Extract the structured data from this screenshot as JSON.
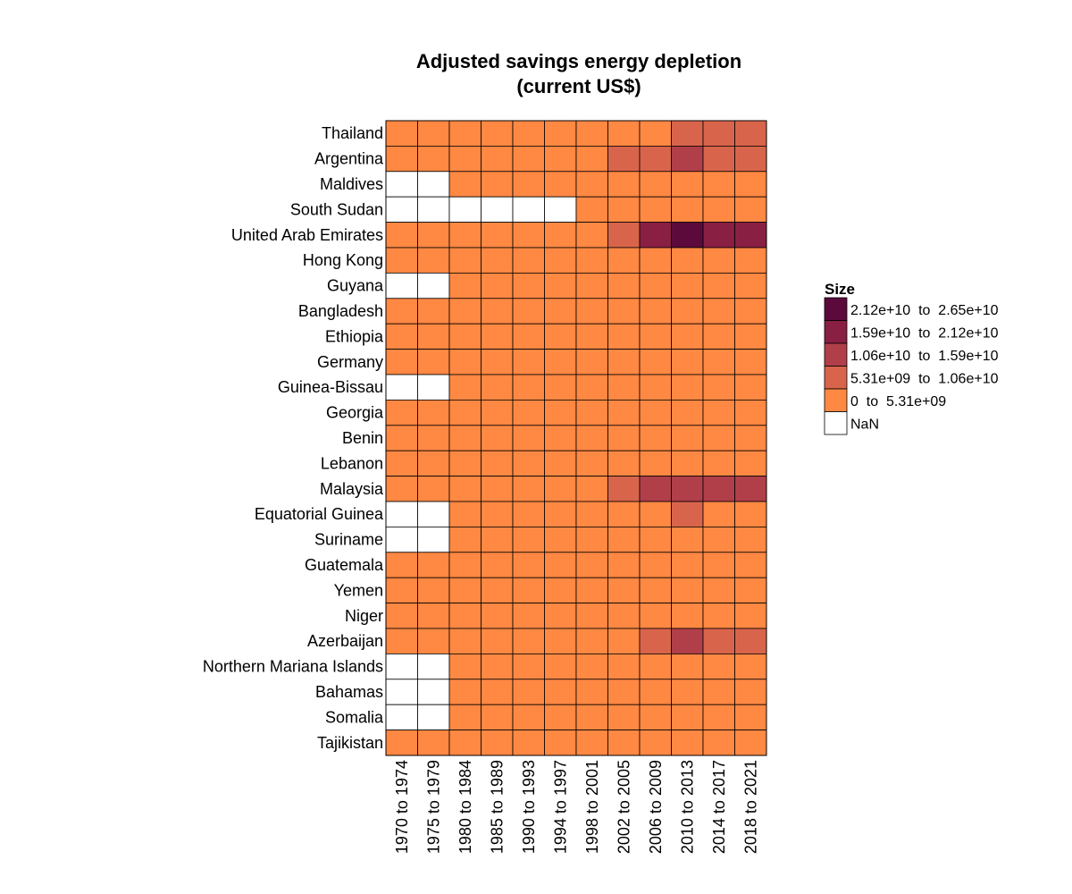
{
  "chart_data": {
    "type": "heatmap",
    "title_lines": [
      "Adjusted savings energy depletion",
      "(current US$)"
    ],
    "x_categories": [
      "1970 to 1974",
      "1975 to 1979",
      "1980 to 1984",
      "1985 to 1989",
      "1990 to 1993",
      "1994 to 1997",
      "1998 to 2001",
      "2002 to 2005",
      "2006 to 2009",
      "2010 to 2013",
      "2014 to 2017",
      "2018 to 2021"
    ],
    "y_categories": [
      "Thailand",
      "Argentina",
      "Maldives",
      "South Sudan",
      "United Arab Emirates",
      "Hong Kong",
      "Guyana",
      "Bangladesh",
      "Ethiopia",
      "Germany",
      "Guinea-Bissau",
      "Georgia",
      "Benin",
      "Lebanon",
      "Malaysia",
      "Equatorial Guinea",
      "Suriname",
      "Guatemala",
      "Yemen",
      "Niger",
      "Azerbaijan",
      "Northern Mariana Islands",
      "Bahamas",
      "Somalia",
      "Tajikistan"
    ],
    "bin_matrix": [
      [
        0,
        0,
        0,
        0,
        0,
        0,
        0,
        0,
        0,
        1,
        1,
        1
      ],
      [
        0,
        0,
        0,
        0,
        0,
        0,
        0,
        1,
        1,
        2,
        1,
        1
      ],
      [
        -1,
        -1,
        0,
        0,
        0,
        0,
        0,
        0,
        0,
        0,
        0,
        0
      ],
      [
        -1,
        -1,
        -1,
        -1,
        -1,
        -1,
        0,
        0,
        0,
        0,
        0,
        0
      ],
      [
        0,
        0,
        0,
        0,
        0,
        0,
        0,
        1,
        3,
        4,
        3,
        3
      ],
      [
        0,
        0,
        0,
        0,
        0,
        0,
        0,
        0,
        0,
        0,
        0,
        0
      ],
      [
        -1,
        -1,
        0,
        0,
        0,
        0,
        0,
        0,
        0,
        0,
        0,
        0
      ],
      [
        0,
        0,
        0,
        0,
        0,
        0,
        0,
        0,
        0,
        0,
        0,
        0
      ],
      [
        0,
        0,
        0,
        0,
        0,
        0,
        0,
        0,
        0,
        0,
        0,
        0
      ],
      [
        0,
        0,
        0,
        0,
        0,
        0,
        0,
        0,
        0,
        0,
        0,
        0
      ],
      [
        -1,
        -1,
        0,
        0,
        0,
        0,
        0,
        0,
        0,
        0,
        0,
        0
      ],
      [
        0,
        0,
        0,
        0,
        0,
        0,
        0,
        0,
        0,
        0,
        0,
        0
      ],
      [
        0,
        0,
        0,
        0,
        0,
        0,
        0,
        0,
        0,
        0,
        0,
        0
      ],
      [
        0,
        0,
        0,
        0,
        0,
        0,
        0,
        0,
        0,
        0,
        0,
        0
      ],
      [
        0,
        0,
        0,
        0,
        0,
        0,
        0,
        1,
        2,
        2,
        2,
        2
      ],
      [
        -1,
        -1,
        0,
        0,
        0,
        0,
        0,
        0,
        0,
        1,
        0,
        0
      ],
      [
        -1,
        -1,
        0,
        0,
        0,
        0,
        0,
        0,
        0,
        0,
        0,
        0
      ],
      [
        0,
        0,
        0,
        0,
        0,
        0,
        0,
        0,
        0,
        0,
        0,
        0
      ],
      [
        0,
        0,
        0,
        0,
        0,
        0,
        0,
        0,
        0,
        0,
        0,
        0
      ],
      [
        0,
        0,
        0,
        0,
        0,
        0,
        0,
        0,
        0,
        0,
        0,
        0
      ],
      [
        0,
        0,
        0,
        0,
        0,
        0,
        0,
        0,
        1,
        2,
        1,
        1
      ],
      [
        -1,
        -1,
        0,
        0,
        0,
        0,
        0,
        0,
        0,
        0,
        0,
        0
      ],
      [
        -1,
        -1,
        0,
        0,
        0,
        0,
        0,
        0,
        0,
        0,
        0,
        0
      ],
      [
        -1,
        -1,
        0,
        0,
        0,
        0,
        0,
        0,
        0,
        0,
        0,
        0
      ],
      [
        0,
        0,
        0,
        0,
        0,
        0,
        0,
        0,
        0,
        0,
        0,
        0
      ]
    ],
    "legend": {
      "title": "Size",
      "placement": "right",
      "bins": [
        {
          "label": "2.12e+10  to  2.65e+10",
          "color": "#5c0a3c"
        },
        {
          "label": "1.59e+10  to  2.12e+10",
          "color": "#8a1f44"
        },
        {
          "label": "1.06e+10  to  1.59e+10",
          "color": "#b03f4a"
        },
        {
          "label": "5.31e+09  to  1.06e+10",
          "color": "#d8654b"
        },
        {
          "label": "0  to  5.31e+09",
          "color": "#ff8843"
        },
        {
          "label": "NaN",
          "color": "#ffffff"
        }
      ]
    },
    "bin_colors": [
      "#ff8843",
      "#d8654b",
      "#b03f4a",
      "#8a1f44",
      "#5c0a3c"
    ],
    "nan_color": "#ffffff",
    "grid": true
  }
}
